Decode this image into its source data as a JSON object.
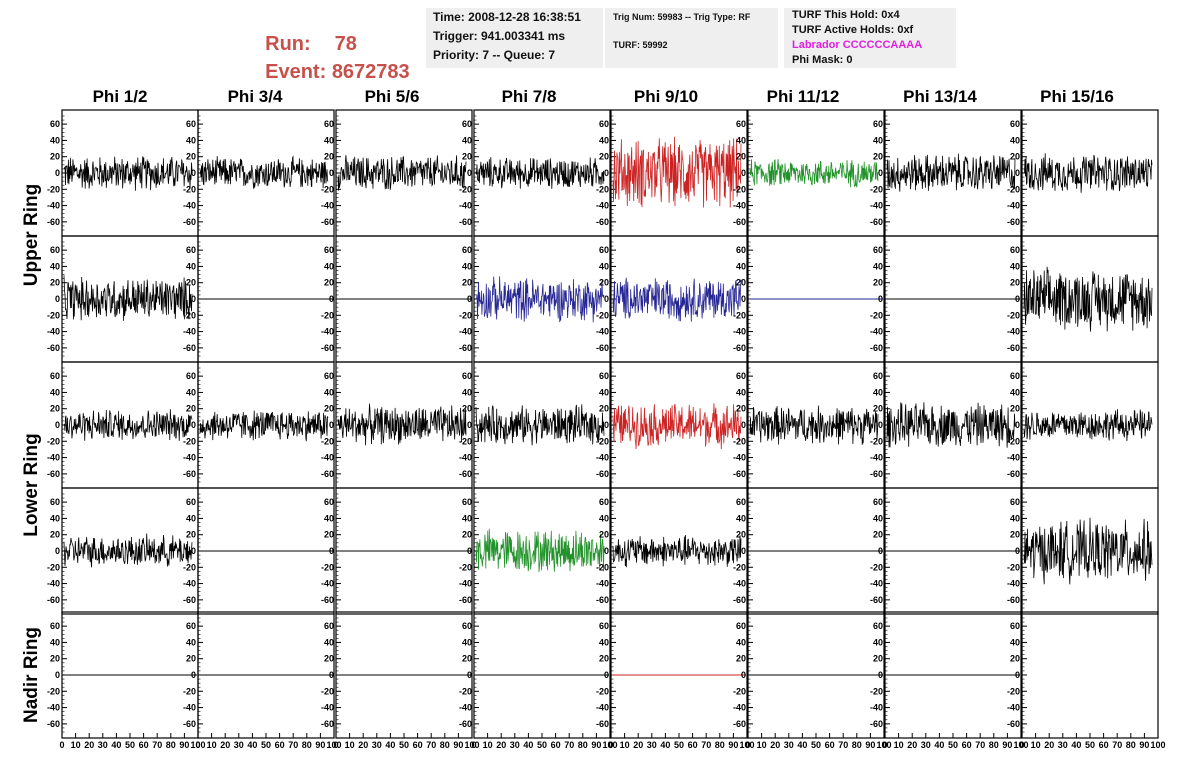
{
  "header": {
    "run_label": "Run:",
    "run_value": "78",
    "event_label": "Event:",
    "event_value": "8672783"
  },
  "info_time": {
    "time": "Time: 2008-12-28 16:38:51",
    "trigger": "Trigger: 941.003341 ms",
    "priority": "Priority: 7 -- Queue: 7"
  },
  "info_trig": {
    "trig": "Trig Num: 59983 -- Trig Type: RF",
    "turf": "TURF: 59992"
  },
  "info_turf": {
    "this_hold": "TURF This Hold: 0x4",
    "active_holds": "TURF Active Holds: 0xf",
    "labrador": "Labrador CCCCCCAAAA",
    "phi_mask": "Phi Mask: 0",
    "labrador_color": "#e020e0"
  },
  "columns": [
    "Phi 1/2",
    "Phi 3/4",
    "Phi 5/6",
    "Phi 7/8",
    "Phi 9/10",
    "Phi 11/12",
    "Phi 13/14",
    "Phi 15/16"
  ],
  "rings": [
    {
      "label": "Upper Ring",
      "rows": [
        0,
        1
      ]
    },
    {
      "label": "Lower Ring",
      "rows": [
        2,
        3
      ]
    },
    {
      "label": "Nadir Ring",
      "rows": [
        4
      ]
    }
  ],
  "axes": {
    "y_ticks": [
      "60",
      "40",
      "20",
      "0",
      "-20",
      "-40",
      "-60"
    ],
    "x_tick_labels": [
      "0",
      "10",
      "20",
      "30",
      "40",
      "50",
      "60",
      "70",
      "80",
      "90",
      "100"
    ],
    "ylim": [
      -70,
      70
    ],
    "xlim": [
      0,
      100
    ]
  },
  "trace_colors": {
    "black": "#000000",
    "red": "#cc2222",
    "green": "#22922a",
    "blue": "#262694"
  },
  "chart_data": {
    "type": "line",
    "grid": [
      [
        {
          "color": "black",
          "amp": 20
        },
        {
          "color": "black",
          "amp": 18
        },
        {
          "color": "black",
          "amp": 20
        },
        {
          "color": "black",
          "amp": 18
        },
        {
          "color": "red",
          "amp": 40
        },
        {
          "color": "green",
          "amp": 16
        },
        {
          "color": "black",
          "amp": 22
        },
        {
          "color": "black",
          "amp": 22
        }
      ],
      [
        {
          "color": "black",
          "amp": 25
        },
        {
          "color": "black",
          "amp": 0
        },
        {
          "color": "black",
          "amp": 0
        },
        {
          "color": "blue",
          "amp": 25
        },
        {
          "color": "blue",
          "amp": 25
        },
        {
          "color": "blue",
          "amp": 0
        },
        {
          "color": "black",
          "amp": 0
        },
        {
          "color": "black",
          "amp": 35
        }
      ],
      [
        {
          "color": "black",
          "amp": 18
        },
        {
          "color": "black",
          "amp": 18
        },
        {
          "color": "black",
          "amp": 22
        },
        {
          "color": "black",
          "amp": 22
        },
        {
          "color": "red",
          "amp": 25
        },
        {
          "color": "black",
          "amp": 22
        },
        {
          "color": "black",
          "amp": 25
        },
        {
          "color": "black",
          "amp": 18
        }
      ],
      [
        {
          "color": "black",
          "amp": 18
        },
        {
          "color": "black",
          "amp": 0
        },
        {
          "color": "black",
          "amp": 0
        },
        {
          "color": "green",
          "amp": 25
        },
        {
          "color": "black",
          "amp": 18
        },
        {
          "color": "black",
          "amp": 0
        },
        {
          "color": "black",
          "amp": 0
        },
        {
          "color": "black",
          "amp": 35
        }
      ],
      [
        {
          "color": "black",
          "amp": 0
        },
        {
          "color": "black",
          "amp": 0
        },
        {
          "color": "black",
          "amp": 0
        },
        {
          "color": "black",
          "amp": 0
        },
        {
          "color": "red",
          "amp": 0
        },
        {
          "color": "black",
          "amp": 0
        },
        {
          "color": "black",
          "amp": 0
        },
        {
          "color": "none",
          "amp": 0
        }
      ]
    ]
  }
}
